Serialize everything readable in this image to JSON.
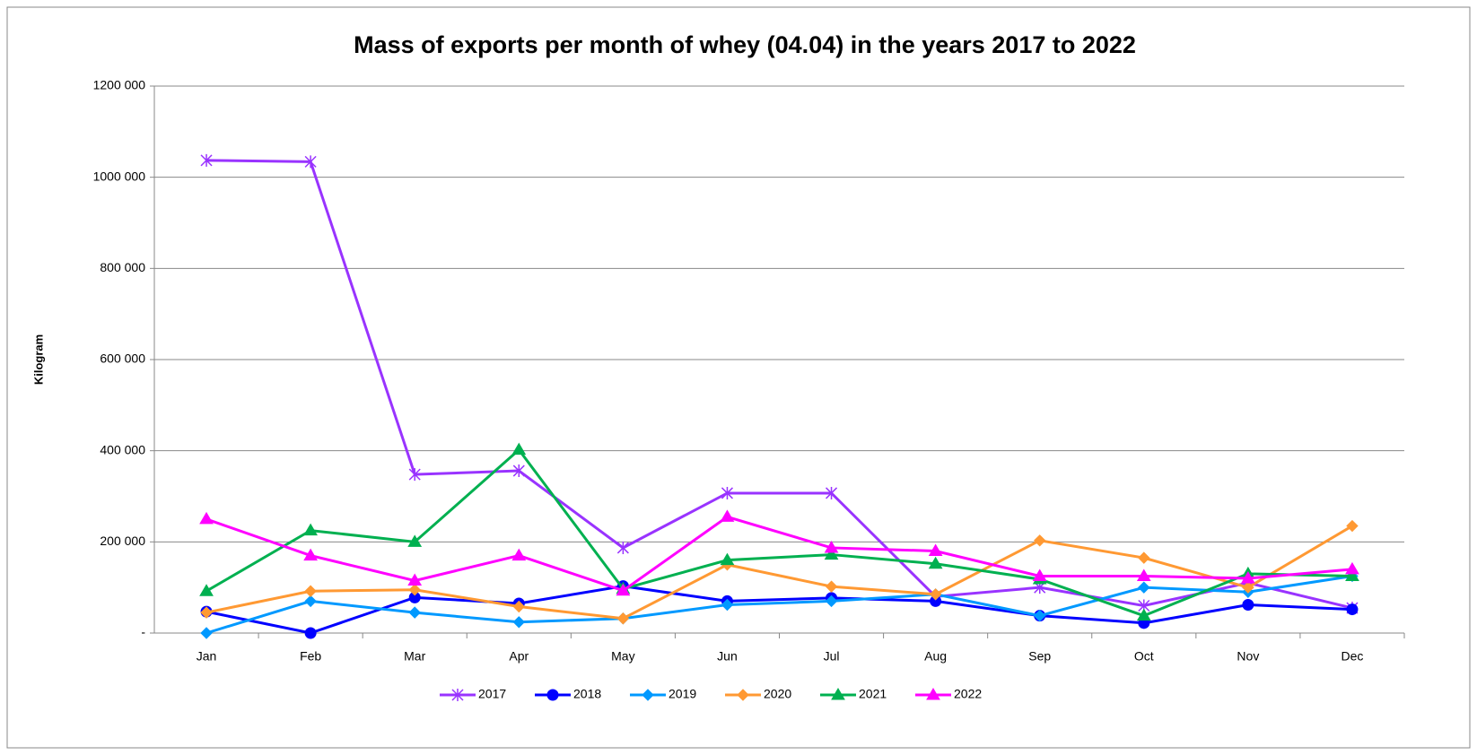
{
  "chart_data": {
    "type": "line",
    "title": "Mass of exports per month of whey (04.04) in the years 2017 to 2022",
    "y_label": "Kilogram",
    "categories": [
      "Jan",
      "Feb",
      "Mar",
      "Apr",
      "May",
      "Jun",
      "Jul",
      "Aug",
      "Sep",
      "Oct",
      "Nov",
      "Dec"
    ],
    "ylim": [
      0,
      1200000
    ],
    "yticks": [
      {
        "value": 0,
        "label": "-"
      },
      {
        "value": 200000,
        "label": "200 000"
      },
      {
        "value": 400000,
        "label": "400 000"
      },
      {
        "value": 600000,
        "label": "600 000"
      },
      {
        "value": 800000,
        "label": "800 000"
      },
      {
        "value": 1000000,
        "label": "1000 000"
      },
      {
        "value": 1200000,
        "label": "1200 000"
      }
    ],
    "grid": true,
    "legend": "bottom",
    "series": [
      {
        "name": "2017",
        "color": "#9933ff",
        "marker": "star",
        "values": [
          1037000,
          1034000,
          348000,
          356000,
          187000,
          307000,
          307000,
          80000,
          100000,
          60000,
          110000,
          55000
        ]
      },
      {
        "name": "2018",
        "color": "#0000ff",
        "marker": "circle",
        "values": [
          47000,
          0,
          78000,
          65000,
          103000,
          70000,
          77000,
          70000,
          38000,
          22000,
          62000,
          52000
        ]
      },
      {
        "name": "2019",
        "color": "#0099ff",
        "marker": "diamond",
        "values": [
          0,
          70000,
          45000,
          24000,
          32000,
          62000,
          70000,
          85000,
          38000,
          100000,
          90000,
          125000
        ]
      },
      {
        "name": "2020",
        "color": "#ff9933",
        "marker": "diamond",
        "values": [
          45000,
          92000,
          95000,
          58000,
          32000,
          150000,
          102000,
          85000,
          203000,
          165000,
          100000,
          235000
        ]
      },
      {
        "name": "2021",
        "color": "#00b050",
        "marker": "triangle",
        "values": [
          92000,
          225000,
          200000,
          402000,
          97000,
          160000,
          172000,
          152000,
          118000,
          38000,
          130000,
          125000
        ]
      },
      {
        "name": "2022",
        "color": "#ff00ff",
        "marker": "triangle",
        "values": [
          250000,
          170000,
          115000,
          170000,
          93000,
          255000,
          187000,
          180000,
          125000,
          125000,
          120000,
          140000
        ]
      }
    ]
  }
}
